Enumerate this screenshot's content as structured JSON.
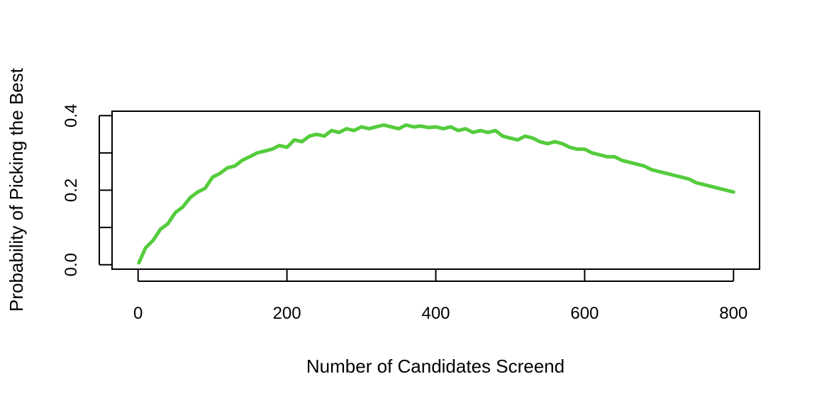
{
  "chart_data": {
    "type": "line",
    "title": "",
    "xlabel": "Number of Candidates Screend",
    "ylabel": "Probability of Picking the Best",
    "xlim": [
      -35,
      835
    ],
    "ylim": [
      -0.012,
      0.412
    ],
    "x_ticks": [
      {
        "value": 0,
        "label": "0"
      },
      {
        "value": 200,
        "label": "200"
      },
      {
        "value": 400,
        "label": "400"
      },
      {
        "value": 600,
        "label": "600"
      },
      {
        "value": 800,
        "label": "800"
      }
    ],
    "y_ticks": [
      {
        "value": 0.0,
        "label": "0.0"
      },
      {
        "value": 0.1,
        "label": ""
      },
      {
        "value": 0.2,
        "label": "0.2"
      },
      {
        "value": 0.3,
        "label": ""
      },
      {
        "value": 0.4,
        "label": "0.4"
      }
    ],
    "grid": false,
    "line_color": "#54CC3C",
    "series": [
      {
        "x": [
          1,
          10,
          20,
          30,
          40,
          50,
          60,
          70,
          80,
          90,
          100,
          110,
          120,
          130,
          140,
          150,
          160,
          170,
          180,
          190,
          200,
          210,
          220,
          230,
          240,
          250,
          260,
          270,
          280,
          290,
          300,
          310,
          320,
          330,
          340,
          350,
          360,
          370,
          380,
          390,
          400,
          410,
          420,
          430,
          440,
          450,
          460,
          470,
          480,
          490,
          500,
          510,
          520,
          530,
          540,
          550,
          560,
          570,
          580,
          590,
          600,
          610,
          620,
          630,
          640,
          650,
          660,
          670,
          680,
          690,
          700,
          710,
          720,
          730,
          740,
          750,
          760,
          770,
          780,
          790,
          800
        ],
        "y": [
          0.005,
          0.045,
          0.065,
          0.095,
          0.11,
          0.14,
          0.155,
          0.18,
          0.195,
          0.205,
          0.235,
          0.245,
          0.26,
          0.265,
          0.28,
          0.29,
          0.3,
          0.305,
          0.31,
          0.32,
          0.315,
          0.335,
          0.33,
          0.345,
          0.35,
          0.345,
          0.36,
          0.355,
          0.365,
          0.36,
          0.37,
          0.365,
          0.37,
          0.375,
          0.37,
          0.365,
          0.375,
          0.37,
          0.372,
          0.368,
          0.37,
          0.365,
          0.37,
          0.36,
          0.365,
          0.355,
          0.36,
          0.355,
          0.36,
          0.345,
          0.34,
          0.335,
          0.345,
          0.34,
          0.33,
          0.325,
          0.33,
          0.325,
          0.315,
          0.31,
          0.31,
          0.3,
          0.295,
          0.29,
          0.29,
          0.28,
          0.275,
          0.27,
          0.265,
          0.255,
          0.25,
          0.245,
          0.24,
          0.235,
          0.23,
          0.22,
          0.215,
          0.21,
          0.205,
          0.2,
          0.195
        ]
      }
    ]
  }
}
